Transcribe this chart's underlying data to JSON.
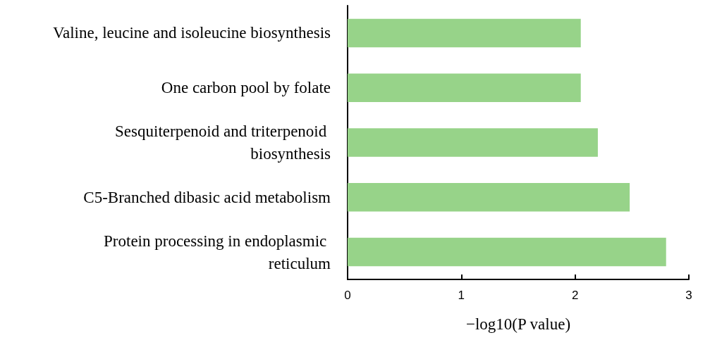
{
  "chart_data": {
    "type": "bar",
    "orientation": "horizontal",
    "categories": [
      "Valine, leucine and isoleucine biosynthesis",
      "One carbon pool by folate",
      "Sesquiterpenoid and triterpenoid biosynthesis",
      "C5-Branched dibasic acid metabolism",
      "Protein processing in endoplasmic reticulum"
    ],
    "values": [
      2.05,
      2.05,
      2.2,
      2.48,
      2.8
    ],
    "color": "#97d389",
    "xlabel": "−log10(P value)",
    "xlim": [
      0,
      3
    ],
    "xticks": [
      0,
      1,
      2,
      3
    ]
  }
}
